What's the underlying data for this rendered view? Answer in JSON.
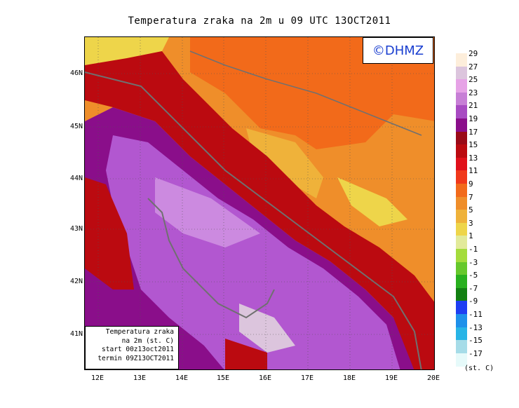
{
  "title": "Temperatura zraka na 2m u 09 UTC 13OCT2011",
  "watermark": "©DHMZ",
  "info_box": {
    "line1": "Temperatura zraka",
    "line2": "na 2m (st. C)",
    "line3": "start 00z13oct2011",
    "line4": "termin 09Z13OCT2011"
  },
  "lat_labels": [
    "46N",
    "45N",
    "44N",
    "43N",
    "42N",
    "41N"
  ],
  "lon_labels": [
    "12E",
    "13E",
    "14E",
    "15E",
    "16E",
    "17E",
    "18E",
    "19E",
    "20E"
  ],
  "legend": {
    "units": "(st. C)",
    "labels": [
      "29",
      "27",
      "25",
      "23",
      "21",
      "19",
      "17",
      "15",
      "13",
      "11",
      "9",
      "7",
      "5",
      "3",
      "1",
      "-1",
      "-3",
      "-5",
      "-7",
      "-9",
      "-11",
      "-13",
      "-15",
      "-17"
    ],
    "colors": [
      "#fdeedb",
      "#dcc5dd",
      "#e6a2e6",
      "#c77fd6",
      "#a84bc2",
      "#8a0e8a",
      "#9a0a18",
      "#bb0a10",
      "#e0101a",
      "#f0381a",
      "#f26a1a",
      "#ef8e2a",
      "#efb23a",
      "#eed54a",
      "#e2ea9a",
      "#a4dc3c",
      "#66c82c",
      "#28b01e",
      "#128012",
      "#1e3ef2",
      "#1e90ea",
      "#28b4e6",
      "#a6dce8",
      "#e6fafa"
    ]
  },
  "colors": {
    "sea_warm": "#b257d0",
    "sea_pale": "#cc8ae0",
    "coast_purple": "#8a0e8a",
    "inland_orange": "#f26a1a",
    "mountain_yellow": "#efb23a",
    "coastline": "#707070"
  }
}
